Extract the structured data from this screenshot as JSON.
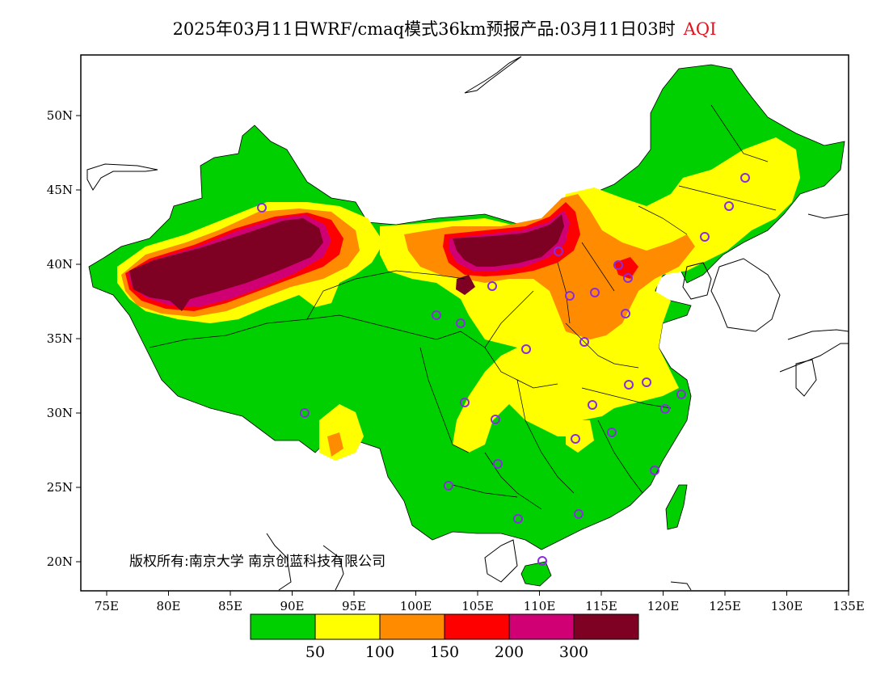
{
  "title": {
    "main": "2025年03月11日WRF/cmaq模式36km预报产品:03月11日03时",
    "variable": "AQI"
  },
  "axes": {
    "x_ticks": [
      "75E",
      "80E",
      "85E",
      "90E",
      "95E",
      "100E",
      "105E",
      "110E",
      "115E",
      "120E",
      "125E",
      "130E",
      "135E"
    ],
    "y_ticks": [
      "20N",
      "25N",
      "30N",
      "35N",
      "40N",
      "45N",
      "50N"
    ]
  },
  "colorbar": {
    "colors": [
      "#00d000",
      "#ffff00",
      "#ff8c00",
      "#ff0000",
      "#d00074",
      "#7e0023"
    ],
    "labels": [
      "50",
      "100",
      "150",
      "200",
      "300"
    ]
  },
  "copyright": "版权所有:南京大学  南京创蓝科技有限公司",
  "colors": {
    "good": "#00d000",
    "moderate": "#ffff00",
    "usg": "#ff8c00",
    "unhealthy": "#ff0000",
    "very_unhealthy": "#d00074",
    "hazardous": "#7e0023",
    "station_marker": "#8a2be2"
  }
}
